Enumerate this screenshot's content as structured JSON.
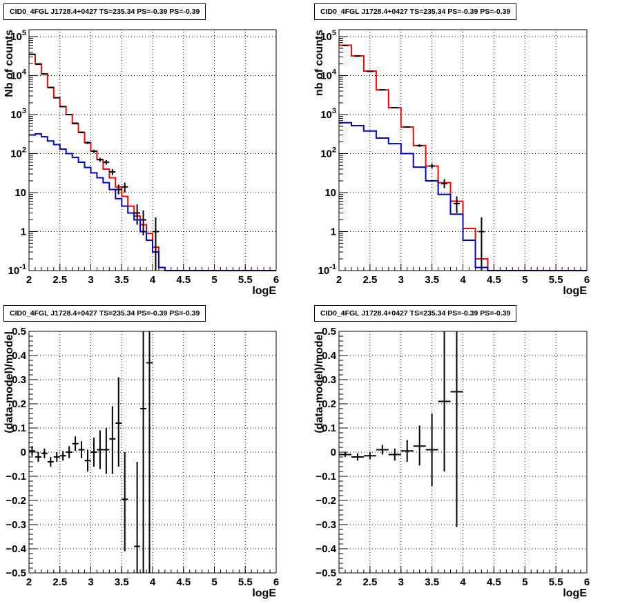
{
  "colors": {
    "data": "#000000",
    "model_total": "#ff0000",
    "model_component": "#0000cc",
    "grid": "#000000"
  },
  "chart_data": [
    {
      "type": "line",
      "panel": "top-left",
      "title": "CID0_4FGL J1728.4+0427 TS=235.34 PS=-0.39 PS=-0.39",
      "xlabel": "logE",
      "ylabel": "Nb of counts",
      "yscale": "log",
      "xlim": [
        2,
        6
      ],
      "ylim": [
        0.1,
        150000
      ],
      "x_ticks": [
        "2",
        "2.5",
        "3",
        "3.5",
        "4",
        "4.5",
        "5",
        "5.5",
        "6"
      ],
      "y_ticks": [
        "10^-1",
        "1",
        "10",
        "10^2",
        "10^3",
        "10^4",
        "10^5"
      ],
      "grid": true,
      "bin_edges": [
        2.0,
        2.1,
        2.2,
        2.3,
        2.4,
        2.5,
        2.6,
        2.7,
        2.8,
        2.9,
        3.0,
        3.1,
        3.2,
        3.3,
        3.4,
        3.5,
        3.6,
        3.7,
        3.8,
        3.9,
        4.0,
        4.1,
        4.2,
        4.3,
        4.4,
        4.5,
        4.6,
        4.7,
        4.8,
        4.9,
        5.0,
        5.1,
        5.2,
        5.3,
        5.4,
        5.5,
        5.6,
        5.7,
        5.8,
        5.9,
        6.0
      ],
      "series": [
        {
          "name": "",
          "kind": "step",
          "color": "#ff0000",
          "values": [
            35000,
            20000,
            11000,
            5000,
            2700,
            1600,
            1000,
            580,
            350,
            190,
            115,
            70,
            40,
            24,
            14,
            8,
            4.5,
            2.5,
            1.5,
            0.9,
            0.4,
            0.12,
            0.1,
            0.1,
            0.1,
            0.1,
            0.1,
            0.1,
            0.1,
            0.1,
            0.1,
            0.1,
            0.1,
            0.1,
            0.1,
            0.1,
            0.1,
            0.1,
            0.1,
            0.1
          ]
        },
        {
          "name": "",
          "kind": "step",
          "color": "#0000cc",
          "values": [
            300,
            320,
            270,
            210,
            170,
            130,
            100,
            80,
            60,
            44,
            32,
            24,
            18,
            12,
            7,
            4.5,
            3,
            2,
            1,
            0.6,
            0.3,
            0.12,
            0.1,
            0.1,
            0.1,
            0.1,
            0.1,
            0.1,
            0.1,
            0.1,
            0.1,
            0.1,
            0.1,
            0.1,
            0.1,
            0.1,
            0.1,
            0.1,
            0.1,
            0.1
          ]
        },
        {
          "name": "",
          "kind": "errorbar",
          "color": "#000000",
          "points": [
            {
              "x": 2.05,
              "y": 35000,
              "lo": 34500,
              "hi": 35500
            },
            {
              "x": 2.15,
              "y": 19500,
              "lo": 19000,
              "hi": 20000
            },
            {
              "x": 2.25,
              "y": 11000,
              "lo": 10800,
              "hi": 11200
            },
            {
              "x": 2.35,
              "y": 4900,
              "lo": 4800,
              "hi": 5000
            },
            {
              "x": 2.45,
              "y": 2700,
              "lo": 2650,
              "hi": 2750
            },
            {
              "x": 2.55,
              "y": 1600,
              "lo": 1560,
              "hi": 1640
            },
            {
              "x": 2.65,
              "y": 1000,
              "lo": 970,
              "hi": 1030
            },
            {
              "x": 2.75,
              "y": 600,
              "lo": 575,
              "hi": 625
            },
            {
              "x": 2.85,
              "y": 350,
              "lo": 330,
              "hi": 370
            },
            {
              "x": 2.95,
              "y": 190,
              "lo": 176,
              "hi": 204
            },
            {
              "x": 3.05,
              "y": 115,
              "lo": 104,
              "hi": 126
            },
            {
              "x": 3.15,
              "y": 70,
              "lo": 62,
              "hi": 78
            },
            {
              "x": 3.25,
              "y": 60,
              "lo": 52,
              "hi": 68
            },
            {
              "x": 3.35,
              "y": 34,
              "lo": 28,
              "hi": 40
            },
            {
              "x": 3.45,
              "y": 12,
              "lo": 9,
              "hi": 16
            },
            {
              "x": 3.55,
              "y": 14,
              "lo": 10,
              "hi": 18
            },
            {
              "x": 3.75,
              "y": 3,
              "lo": 1.5,
              "hi": 5
            },
            {
              "x": 3.85,
              "y": 2,
              "lo": 0.8,
              "hi": 3.5
            },
            {
              "x": 4.05,
              "y": 1,
              "lo": 0.1,
              "hi": 2.3
            }
          ]
        }
      ]
    },
    {
      "type": "line",
      "panel": "top-right",
      "title": "CID0_4FGL J1728.4+0427 TS=235.34 PS=-0.39 PS=-0.39",
      "xlabel": "logE",
      "ylabel": "nb of counts",
      "yscale": "log",
      "xlim": [
        2,
        6
      ],
      "ylim": [
        0.1,
        150000
      ],
      "x_ticks": [
        "2",
        "2.5",
        "3",
        "3.5",
        "4",
        "4.5",
        "5",
        "5.5",
        "6"
      ],
      "y_ticks": [
        "10^-1",
        "1",
        "10",
        "10^2",
        "10^3",
        "10^4",
        "10^5"
      ],
      "grid": true,
      "bin_edges": [
        2.0,
        2.2,
        2.4,
        2.6,
        2.8,
        3.0,
        3.2,
        3.4,
        3.6,
        3.8,
        4.0,
        4.2,
        4.4,
        4.6,
        4.8,
        5.0,
        5.2,
        5.4,
        5.6,
        5.8,
        6.0
      ],
      "series": [
        {
          "name": "",
          "kind": "step",
          "color": "#ff0000",
          "values": [
            60000,
            32000,
            13000,
            4300,
            1500,
            480,
            160,
            48,
            18,
            6,
            1.2,
            0.2,
            0.1,
            0.1,
            0.1,
            0.1,
            0.1,
            0.1,
            0.1,
            0.1
          ]
        },
        {
          "name": "",
          "kind": "step",
          "color": "#0000cc",
          "values": [
            620,
            520,
            380,
            250,
            180,
            100,
            45,
            20,
            9,
            2.8,
            0.6,
            0.12,
            0.1,
            0.1,
            0.1,
            0.1,
            0.1,
            0.1,
            0.1,
            0.1
          ]
        },
        {
          "name": "",
          "kind": "errorbar",
          "color": "#000000",
          "points": [
            {
              "x": 2.1,
              "y": 59000,
              "lo": 58500,
              "hi": 59500
            },
            {
              "x": 2.3,
              "y": 31500,
              "lo": 31100,
              "hi": 31900
            },
            {
              "x": 2.5,
              "y": 12800,
              "lo": 12600,
              "hi": 13000
            },
            {
              "x": 2.7,
              "y": 4300,
              "lo": 4200,
              "hi": 4400
            },
            {
              "x": 2.9,
              "y": 1500,
              "lo": 1460,
              "hi": 1540
            },
            {
              "x": 3.1,
              "y": 480,
              "lo": 458,
              "hi": 502
            },
            {
              "x": 3.3,
              "y": 160,
              "lo": 148,
              "hi": 172
            },
            {
              "x": 3.5,
              "y": 48,
              "lo": 41,
              "hi": 55
            },
            {
              "x": 3.7,
              "y": 17,
              "lo": 13,
              "hi": 22
            },
            {
              "x": 3.9,
              "y": 5.2,
              "lo": 3,
              "hi": 8
            },
            {
              "x": 4.3,
              "y": 1,
              "lo": 0.1,
              "hi": 2.3
            }
          ]
        }
      ]
    },
    {
      "type": "scatter",
      "panel": "bottom-left",
      "title": "CID0_4FGL J1728.4+0427 TS=235.34 PS=-0.39 PS=-0.39",
      "xlabel": "logE",
      "ylabel": "(data-model)/model",
      "xlim": [
        2,
        6
      ],
      "ylim": [
        -0.5,
        0.5
      ],
      "x_ticks": [
        "2",
        "2.5",
        "3",
        "3.5",
        "4",
        "4.5",
        "5",
        "5.5",
        "6"
      ],
      "y_ticks": [
        "-0.5",
        "-0.4",
        "-0.3",
        "-0.2",
        "-0.1",
        "0",
        "0.1",
        "0.2",
        "0.3",
        "0.4",
        "0.5"
      ],
      "grid": true,
      "series": [
        {
          "name": "",
          "kind": "errorbar",
          "color": "#000000",
          "points": [
            {
              "x": 2.05,
              "y": 0.005,
              "lo": -0.015,
              "hi": 0.025,
              "xerr": 0.05
            },
            {
              "x": 2.15,
              "y": -0.02,
              "lo": -0.04,
              "hi": 0.0,
              "xerr": 0.05
            },
            {
              "x": 2.25,
              "y": -0.005,
              "lo": -0.025,
              "hi": 0.015,
              "xerr": 0.05
            },
            {
              "x": 2.35,
              "y": -0.04,
              "lo": -0.06,
              "hi": -0.02,
              "xerr": 0.05
            },
            {
              "x": 2.45,
              "y": -0.02,
              "lo": -0.04,
              "hi": 0.0,
              "xerr": 0.05
            },
            {
              "x": 2.55,
              "y": -0.015,
              "lo": -0.035,
              "hi": 0.005,
              "xerr": 0.05
            },
            {
              "x": 2.65,
              "y": 0.0,
              "lo": -0.025,
              "hi": 0.025,
              "xerr": 0.05
            },
            {
              "x": 2.75,
              "y": 0.035,
              "lo": 0.005,
              "hi": 0.065,
              "xerr": 0.05
            },
            {
              "x": 2.85,
              "y": 0.01,
              "lo": -0.025,
              "hi": 0.045,
              "xerr": 0.05
            },
            {
              "x": 2.95,
              "y": -0.035,
              "lo": -0.08,
              "hi": 0.01,
              "xerr": 0.05
            },
            {
              "x": 3.05,
              "y": 0.0,
              "lo": -0.06,
              "hi": 0.06,
              "xerr": 0.05
            },
            {
              "x": 3.15,
              "y": 0.01,
              "lo": -0.07,
              "hi": 0.09,
              "xerr": 0.05
            },
            {
              "x": 3.25,
              "y": 0.01,
              "lo": -0.09,
              "hi": 0.1,
              "xerr": 0.05
            },
            {
              "x": 3.35,
              "y": 0.055,
              "lo": -0.09,
              "hi": 0.19,
              "xerr": 0.05
            },
            {
              "x": 3.45,
              "y": 0.12,
              "lo": -0.06,
              "hi": 0.31,
              "xerr": 0.05
            },
            {
              "x": 3.55,
              "y": -0.195,
              "lo": -0.41,
              "hi": 0.0,
              "xerr": 0.05
            },
            {
              "x": 3.75,
              "y": -0.39,
              "lo": -0.5,
              "hi": -0.04,
              "xerr": 0.05
            },
            {
              "x": 3.85,
              "y": 0.18,
              "lo": -0.5,
              "hi": 0.5,
              "xerr": 0.05
            },
            {
              "x": 3.95,
              "y": 0.37,
              "lo": -0.5,
              "hi": 0.5,
              "xerr": 0.05
            }
          ]
        }
      ]
    },
    {
      "type": "scatter",
      "panel": "bottom-right",
      "title": "CID0_4FGL J1728.4+0427 TS=235.34 PS=-0.39 PS=-0.39",
      "xlabel": "logE",
      "ylabel": "(data-model)/model",
      "xlim": [
        2,
        6
      ],
      "ylim": [
        -0.5,
        0.5
      ],
      "x_ticks": [
        "2",
        "2.5",
        "3",
        "3.5",
        "4",
        "4.5",
        "5",
        "5.5",
        "6"
      ],
      "y_ticks": [
        "-0.5",
        "-0.4",
        "-0.3",
        "-0.2",
        "-0.1",
        "0",
        "0.1",
        "0.2",
        "0.3",
        "0.4",
        "0.5"
      ],
      "grid": true,
      "series": [
        {
          "name": "",
          "kind": "errorbar",
          "color": "#000000",
          "points": [
            {
              "x": 2.1,
              "y": -0.01,
              "lo": -0.02,
              "hi": 0.0,
              "xerr": 0.1
            },
            {
              "x": 2.3,
              "y": -0.02,
              "lo": -0.035,
              "hi": -0.005,
              "xerr": 0.1
            },
            {
              "x": 2.5,
              "y": -0.015,
              "lo": -0.03,
              "hi": 0.0,
              "xerr": 0.1
            },
            {
              "x": 2.7,
              "y": 0.01,
              "lo": -0.01,
              "hi": 0.03,
              "xerr": 0.1
            },
            {
              "x": 2.9,
              "y": -0.01,
              "lo": -0.035,
              "hi": 0.015,
              "xerr": 0.1
            },
            {
              "x": 3.1,
              "y": 0.005,
              "lo": -0.04,
              "hi": 0.05,
              "xerr": 0.1
            },
            {
              "x": 3.3,
              "y": 0.025,
              "lo": -0.055,
              "hi": 0.11,
              "xerr": 0.1
            },
            {
              "x": 3.5,
              "y": 0.01,
              "lo": -0.14,
              "hi": 0.16,
              "xerr": 0.1
            },
            {
              "x": 3.7,
              "y": 0.21,
              "lo": -0.08,
              "hi": 0.5,
              "xerr": 0.1
            },
            {
              "x": 3.9,
              "y": 0.25,
              "lo": -0.31,
              "hi": 0.5,
              "xerr": 0.1
            }
          ]
        }
      ]
    }
  ]
}
